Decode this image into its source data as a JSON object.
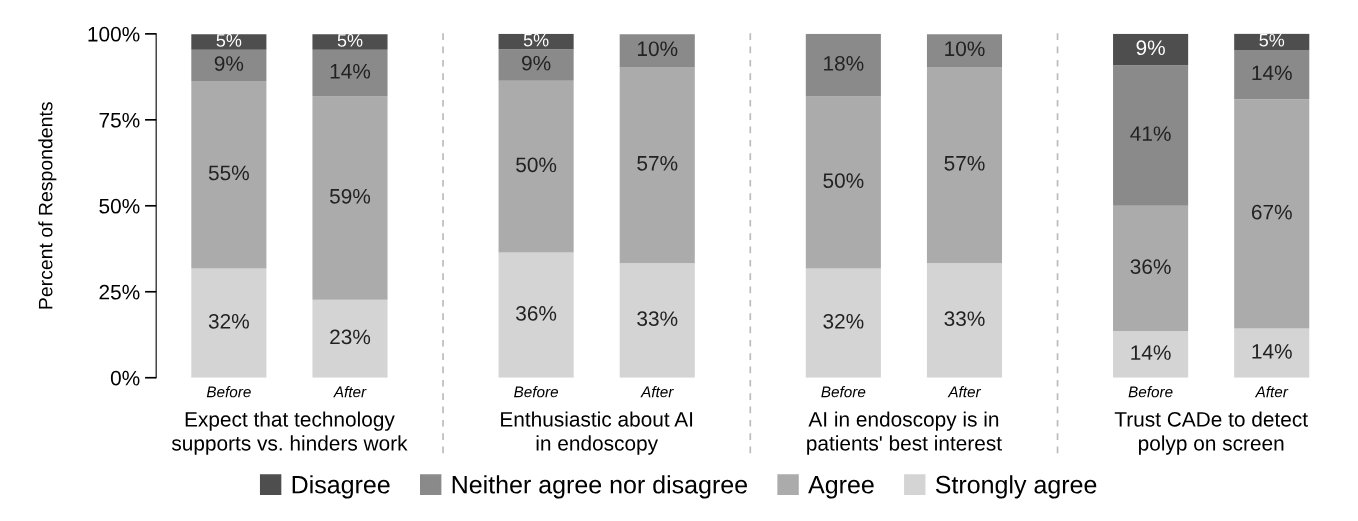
{
  "chart_data": [
    {
      "type": "bar",
      "stacked": true,
      "categories": [
        "Before",
        "After"
      ],
      "xlabel": "Expect that technology\nsupports vs. hinders work",
      "ylabel": "Percent of Respondents",
      "ylim": [
        0,
        100
      ],
      "yticks": [
        {
          "value": 0,
          "label": "0%"
        },
        {
          "value": 25,
          "label": "25%"
        },
        {
          "value": 50,
          "label": "50%"
        },
        {
          "value": 75,
          "label": "75%"
        },
        {
          "value": 100,
          "label": "100%"
        }
      ],
      "legend": "bottom",
      "series": [
        {
          "name": "Strongly agree",
          "color": "#d4d4d4",
          "values": [
            31.8,
            22.7
          ],
          "value_labels": [
            "32%",
            "23%"
          ]
        },
        {
          "name": "Agree",
          "color": "#ababab",
          "values": [
            54.5,
            59.1
          ],
          "value_labels": [
            "55%",
            "59%"
          ]
        },
        {
          "name": "Neither agree nor disagree",
          "color": "#8a8a8a",
          "values": [
            9.1,
            13.6
          ],
          "value_labels": [
            "9%",
            "14%"
          ]
        },
        {
          "name": "Disagree",
          "color": "#4e4e4e",
          "values": [
            4.5,
            4.5
          ],
          "value_labels": [
            "5%",
            "5%"
          ]
        }
      ]
    },
    {
      "type": "bar",
      "stacked": true,
      "categories": [
        "Before",
        "After"
      ],
      "xlabel": "Enthusiastic about AI\nin endoscopy",
      "ylim": [
        0,
        100
      ],
      "tick_labels": "x",
      "series": [
        {
          "color": "#d4d4d4",
          "values": [
            36.4,
            33.3
          ],
          "value_labels": [
            "36%",
            "33%"
          ]
        },
        {
          "color": "#ababab",
          "values": [
            50.0,
            57.1
          ],
          "value_labels": [
            "50%",
            "57%"
          ]
        },
        {
          "color": "#8a8a8a",
          "values": [
            9.1,
            9.5
          ],
          "value_labels": [
            "9%",
            "10%"
          ]
        },
        {
          "color": "#4e4e4e",
          "values": [
            4.5,
            null
          ],
          "value_labels": [
            "5%",
            null
          ]
        }
      ]
    },
    {
      "type": "bar",
      "stacked": true,
      "categories": [
        "Before",
        "After"
      ],
      "xlabel": "AI in endoscopy is in\npatients' best interest",
      "ylim": [
        0,
        100
      ],
      "tick_labels": "x",
      "series": [
        {
          "color": "#d4d4d4",
          "values": [
            31.8,
            33.3
          ],
          "value_labels": [
            "32%",
            "33%"
          ]
        },
        {
          "color": "#ababab",
          "values": [
            50.0,
            57.1
          ],
          "value_labels": [
            "50%",
            "57%"
          ]
        },
        {
          "color": "#8a8a8a",
          "values": [
            18.2,
            9.5
          ],
          "value_labels": [
            "18%",
            "10%"
          ]
        },
        {
          "color": "#4e4e4e",
          "values": [
            null,
            null
          ],
          "value_labels": [
            null,
            null
          ]
        }
      ]
    },
    {
      "type": "bar",
      "stacked": true,
      "categories": [
        "Before",
        "After"
      ],
      "xlabel": "Trust CADe to detect\npolyp on screen",
      "ylim": [
        0,
        100
      ],
      "tick_labels": "x",
      "series": [
        {
          "color": "#d4d4d4",
          "values": [
            13.6,
            14.3
          ],
          "value_labels": [
            "14%",
            "14%"
          ]
        },
        {
          "color": "#ababab",
          "values": [
            36.4,
            66.7
          ],
          "value_labels": [
            "36%",
            "67%"
          ]
        },
        {
          "color": "#8a8a8a",
          "values": [
            40.9,
            14.3
          ],
          "value_labels": [
            "41%",
            "14%"
          ]
        },
        {
          "color": "#4e4e4e",
          "values": [
            9.1,
            4.8
          ],
          "value_labels": [
            "9%",
            "5%"
          ]
        }
      ]
    }
  ]
}
